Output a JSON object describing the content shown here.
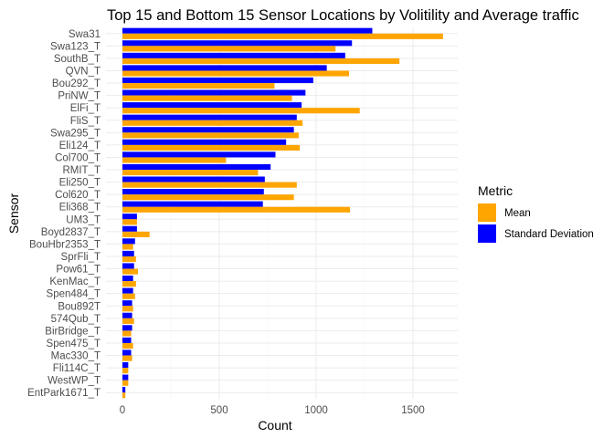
{
  "chart_data": {
    "type": "bar",
    "orientation": "horizontal",
    "title": "Top 15 and Bottom 15 Sensor Locations by Volitility and Average traffic",
    "xlabel": "Count",
    "ylabel": "Sensor",
    "xlim": [
      0,
      1700
    ],
    "x_ticks": [
      0,
      500,
      1000,
      1500
    ],
    "grid": true,
    "legend": {
      "title": "Metric",
      "position": "right"
    },
    "categories": [
      "Swa31",
      "Swa123_T",
      "SouthB_T",
      "QVN_T",
      "Bou292_T",
      "PriNW_T",
      "ElFi_T",
      "FliS_T",
      "Swa295_T",
      "Eli124_T",
      "Col700_T",
      "RMIT_T",
      "Eli250_T",
      "Col620_T",
      "Eli368_T",
      "UM3_T",
      "Boyd2837_T",
      "BouHbr2353_T",
      "SprFli_T",
      "Pow61_T",
      "KenMac_T",
      "Spen484_T",
      "Bou892T",
      "574Qub_T",
      "BirBridge_T",
      "Spen475_T",
      "Mac330_T",
      "Fli114C_T",
      "WestWP_T",
      "EntPark1671_T"
    ],
    "series": [
      {
        "name": "Mean",
        "color": "#FFA500",
        "values": [
          1655,
          1100,
          1430,
          1170,
          785,
          875,
          1225,
          930,
          910,
          915,
          535,
          700,
          900,
          885,
          1175,
          75,
          140,
          55,
          70,
          80,
          70,
          65,
          55,
          60,
          45,
          55,
          50,
          30,
          30,
          15
        ]
      },
      {
        "name": "Standard Deviation",
        "color": "#0000FF",
        "values": [
          1290,
          1185,
          1150,
          1055,
          985,
          945,
          925,
          900,
          885,
          845,
          790,
          765,
          735,
          730,
          725,
          75,
          75,
          65,
          60,
          60,
          55,
          55,
          50,
          50,
          50,
          45,
          45,
          30,
          30,
          15
        ]
      }
    ]
  }
}
